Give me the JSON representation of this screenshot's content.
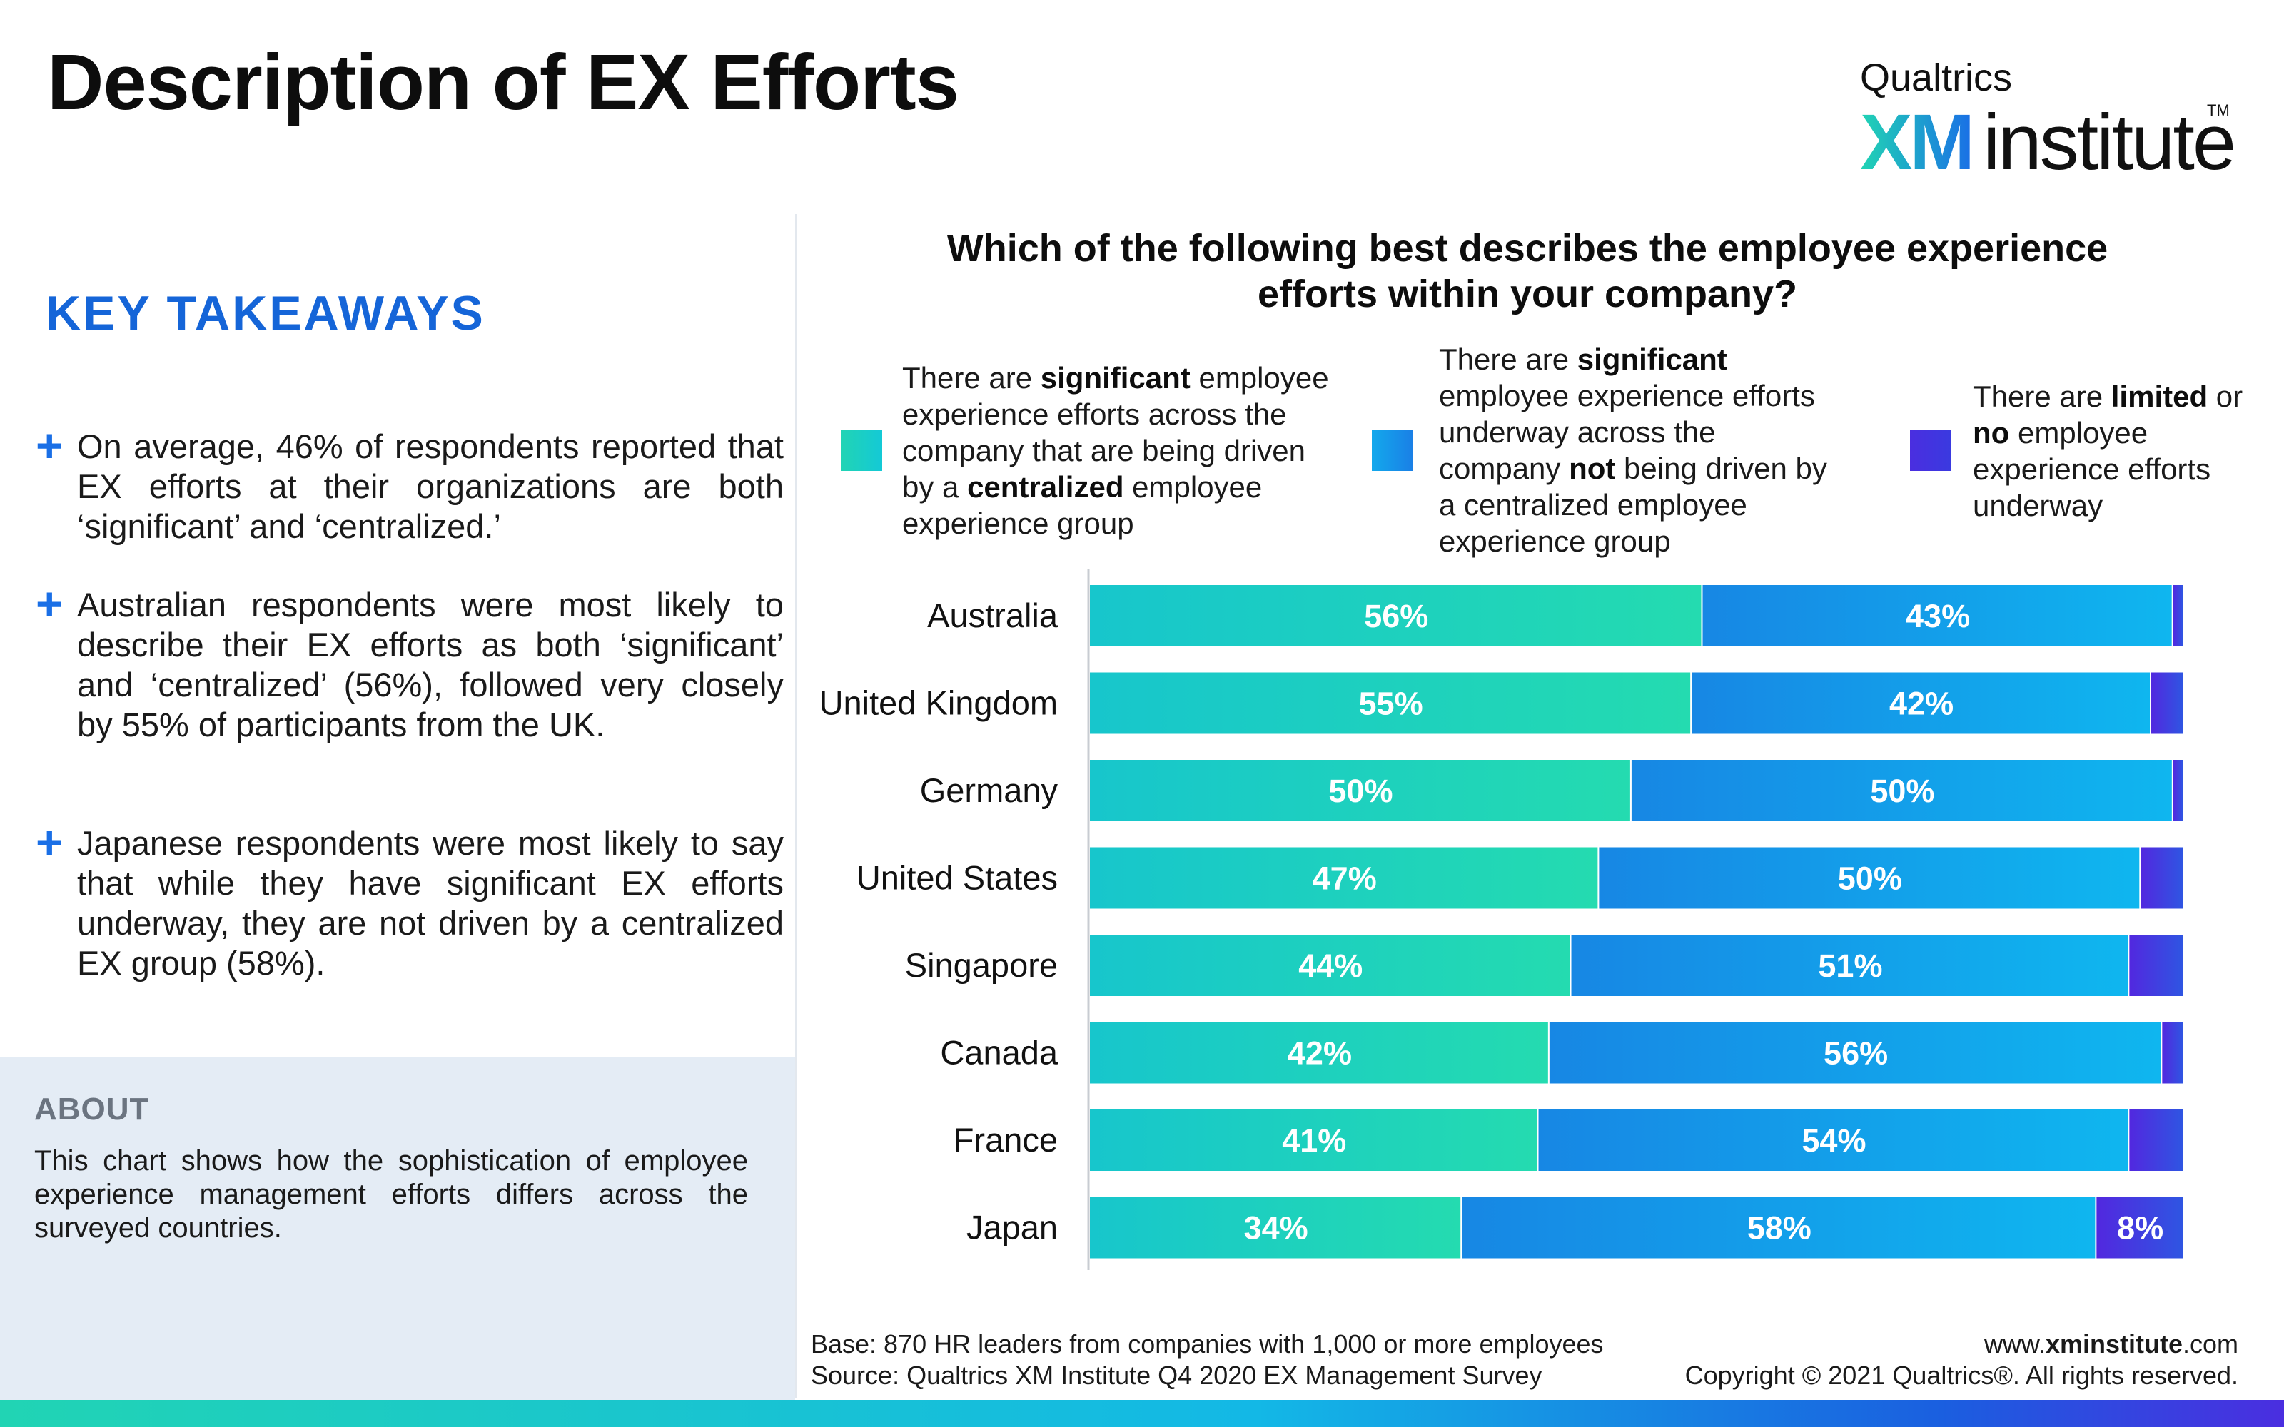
{
  "page": {
    "title": "Description of EX Efforts"
  },
  "logo": {
    "top": "Qualtrics",
    "xm": "XM",
    "word": "institute",
    "tm": "TM"
  },
  "takeaways": {
    "heading": "KEY TAKEAWAYS",
    "items": [
      "On average, 46% of respondents reported that EX efforts at their organizations are both ‘significant’ and ‘centralized.’",
      "Australian respondents were most likely to describe their EX efforts as both ‘significant’ and ‘centralized’ (56%), followed very closely by 55% of participants from the UK.",
      "Japanese respondents were most likely to say that while they have significant EX efforts underway, they are not driven by a centralized EX group (58%)."
    ]
  },
  "about": {
    "heading": "ABOUT",
    "text": "This chart shows how the sophistication of employee experience management efforts differs across the surveyed countries."
  },
  "legend": [
    {
      "parts": [
        "There are ",
        "significant",
        " employee experience efforts across the company that are being driven by a ",
        "centralized",
        " employee experience group"
      ],
      "color": "#21d4b4"
    },
    {
      "parts": [
        "There are ",
        "significant",
        " employee experience efforts underway across the company ",
        "not",
        " being driven by a centralized employee experience group"
      ],
      "color": "#13a9ec"
    },
    {
      "parts": [
        "There are ",
        "limited",
        " or ",
        "no",
        " employee experience efforts underway"
      ],
      "color": "#4a2ee0"
    }
  ],
  "chart_data": {
    "type": "bar",
    "orientation": "horizontal",
    "stacked": true,
    "title": "Which of the following best describes the employee experience efforts within your company?",
    "categories": [
      "Australia",
      "United Kingdom",
      "Germany",
      "United States",
      "Singapore",
      "Canada",
      "France",
      "Japan"
    ],
    "series": [
      {
        "name": "There are significant employee experience efforts across the company that are being driven by a centralized employee experience group",
        "values": [
          56,
          55,
          50,
          47,
          44,
          42,
          41,
          34
        ],
        "labels": [
          "56%",
          "55%",
          "50%",
          "47%",
          "44%",
          "42%",
          "41%",
          "34%"
        ],
        "color": "#21d4b4"
      },
      {
        "name": "There are significant employee experience efforts underway across the company not being driven by a centralized employee experience group",
        "values": [
          43,
          42,
          50,
          50,
          51,
          56,
          54,
          58
        ],
        "labels": [
          "43%",
          "42%",
          "50%",
          "50%",
          "51%",
          "56%",
          "54%",
          "58%"
        ],
        "color": "#13a9ec"
      },
      {
        "name": "There are limited or no employee experience efforts underway",
        "values": [
          1,
          3,
          1,
          4,
          5,
          2,
          5,
          8
        ],
        "labels": [
          "",
          "",
          "",
          "",
          "",
          "",
          "",
          "8%"
        ],
        "color": "#4a2ee0"
      }
    ],
    "xlim": [
      0,
      100
    ],
    "grid": false,
    "legend_position": "top"
  },
  "footer": {
    "base": "Base: 870 HR leaders from companies with 1,000 or more employees",
    "source": "Source: Qualtrics XM Institute Q4 2020  EX Management Survey",
    "url_prefix": "www.",
    "url_bold": "xminstitute",
    "url_suffix": ".com",
    "copyright": "Copyright © 2021 Qualtrics®. All rights reserved."
  }
}
